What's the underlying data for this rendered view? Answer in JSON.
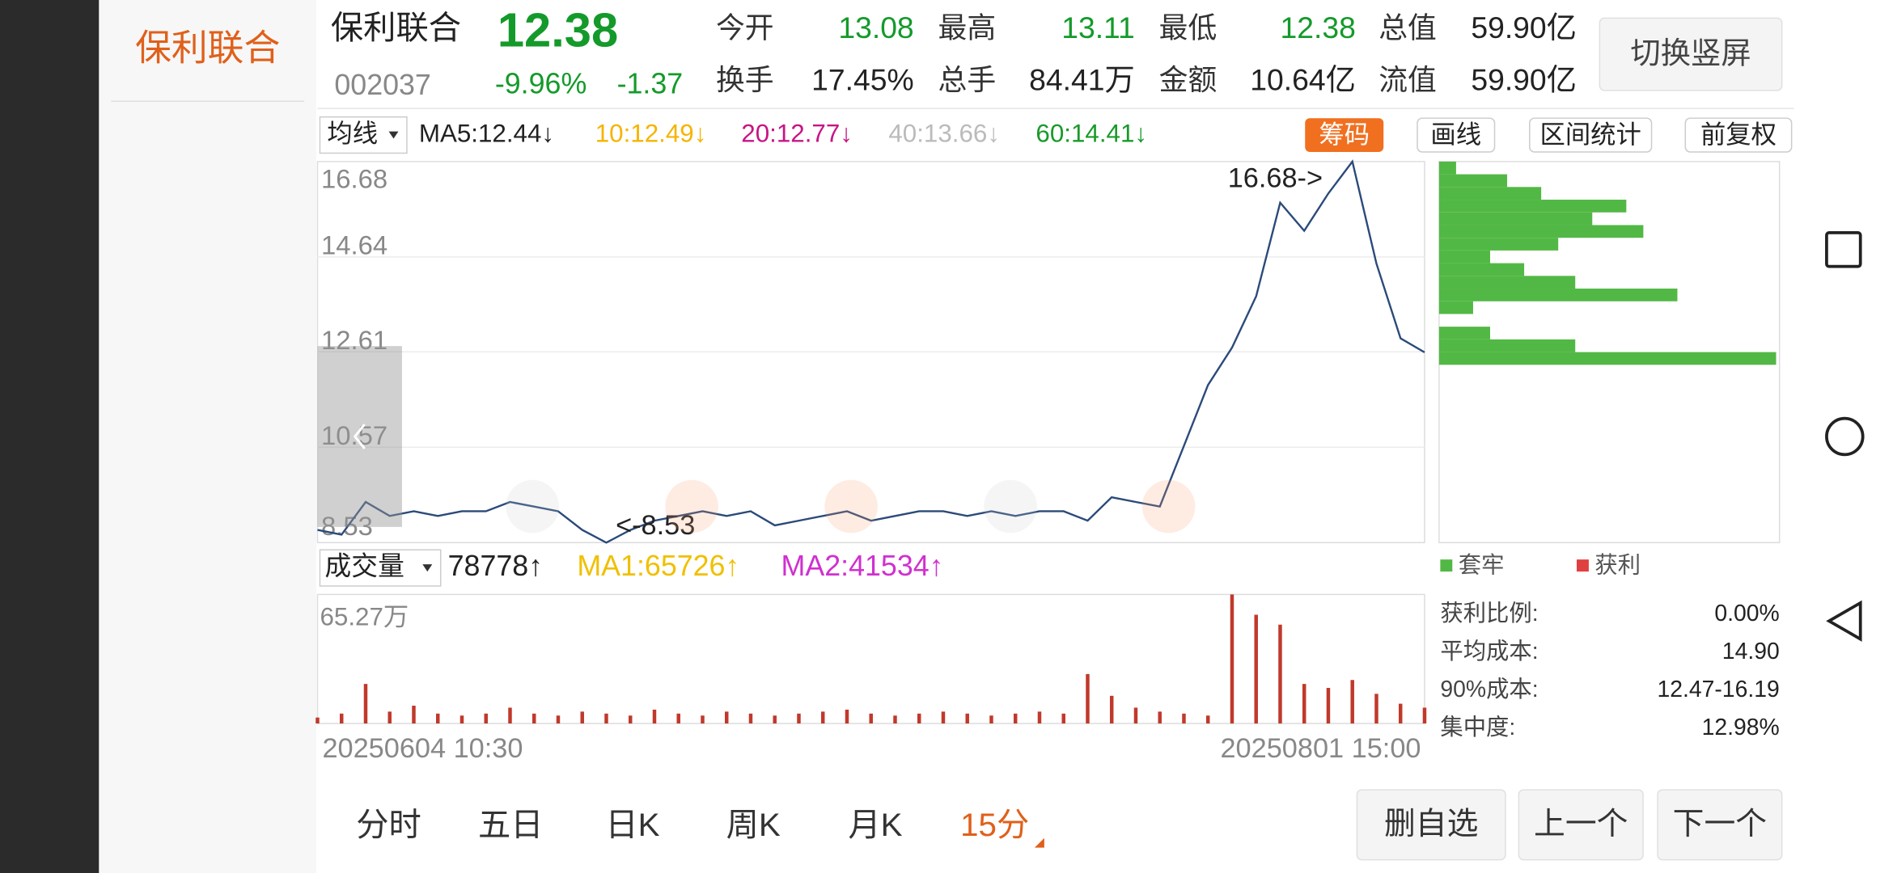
{
  "header": {
    "tab_name": "保利联合",
    "name": "保利联合",
    "price": "12.38",
    "code": "002037",
    "change_pct": "-9.96%",
    "change": "-1.37",
    "button": "切换竖屏"
  },
  "stats": [
    {
      "label": "今开",
      "value": "13.08"
    },
    {
      "label": "最高",
      "value": "13.11"
    },
    {
      "label": "最低",
      "value": "12.38"
    },
    {
      "label": "总值",
      "value": "59.90亿"
    },
    {
      "label": "换手",
      "value": "17.45%"
    },
    {
      "label": "总手",
      "value": "84.41万"
    },
    {
      "label": "金额",
      "value": "10.64亿"
    },
    {
      "label": "流值",
      "value": "59.90亿"
    }
  ],
  "ma_bar": {
    "selector": "均线",
    "items": [
      {
        "text": "MA5:12.44↓",
        "color": "#222222"
      },
      {
        "text": "10:12.49↓",
        "color": "#f5b400"
      },
      {
        "text": "20:12.77↓",
        "color": "#c71585"
      },
      {
        "text": "40:13.66↓",
        "color": "#bbbbbb"
      },
      {
        "text": "60:14.41↓",
        "color": "#1a9a2a"
      }
    ]
  },
  "tools": [
    "筹码",
    "画线",
    "区间统计",
    "前复权"
  ],
  "price_chart": {
    "type": "line",
    "color": "#2b4a7a",
    "ylim": [
      8.53,
      16.68
    ],
    "yticks": [
      8.53,
      10.57,
      12.61,
      14.64,
      16.68
    ],
    "grid": true,
    "values": [
      8.8,
      8.7,
      9.4,
      9.1,
      9.2,
      9.1,
      9.2,
      9.2,
      9.4,
      9.3,
      9.2,
      8.8,
      8.53,
      8.8,
      9.0,
      9.1,
      9.2,
      9.1,
      9.2,
      8.9,
      9.0,
      9.1,
      9.2,
      9.0,
      9.1,
      9.2,
      9.2,
      9.1,
      9.2,
      9.1,
      9.2,
      9.2,
      9.0,
      9.5,
      9.4,
      9.3,
      10.6,
      11.9,
      12.7,
      13.8,
      15.8,
      15.2,
      16.0,
      16.68,
      14.5,
      12.9,
      12.6
    ],
    "annotations": [
      "16.68->",
      "<-8.53"
    ]
  },
  "volume_bar": {
    "selector": "成交量",
    "items": [
      {
        "text": "78778↑",
        "color": "#222222"
      },
      {
        "text": "MA1:65726↑",
        "color": "#f0c000"
      },
      {
        "text": "MA2:41534↑",
        "color": "#d030d0"
      }
    ]
  },
  "volume_chart": {
    "type": "bar",
    "color": "#c0392b",
    "top_label": "65.27万",
    "ylim": [
      0,
      65.27
    ],
    "values": [
      3,
      5,
      20,
      6,
      9,
      5,
      4,
      5,
      8,
      5,
      4,
      6,
      5,
      4,
      7,
      5,
      4,
      6,
      5,
      4,
      5,
      6,
      7,
      5,
      4,
      5,
      6,
      5,
      4,
      5,
      6,
      5,
      25,
      14,
      8,
      6,
      5,
      4,
      65.27,
      55,
      50,
      20,
      18,
      22,
      15,
      10,
      8
    ],
    "x_labels": [
      "20250604 10:30",
      "20250801 15:00"
    ]
  },
  "chips": {
    "color": "#52b845",
    "values": [
      5,
      20,
      30,
      55,
      45,
      60,
      35,
      15,
      25,
      40,
      70,
      10,
      0,
      15,
      40,
      99,
      0,
      0,
      0,
      0,
      0,
      0,
      0,
      0,
      0,
      0,
      0,
      0,
      0,
      0
    ],
    "legend": [
      {
        "name": "套牢",
        "color": "#52b845"
      },
      {
        "name": "获利",
        "color": "#e04040"
      }
    ],
    "stats": [
      {
        "label": "获利比例:",
        "value": "0.00%"
      },
      {
        "label": "平均成本:",
        "value": "14.90"
      },
      {
        "label": "90%成本:",
        "value": "12.47-16.19"
      },
      {
        "label": "集中度:",
        "value": "12.98%"
      }
    ]
  },
  "tabs": [
    "分时",
    "五日",
    "日K",
    "周K",
    "月K",
    "15分"
  ],
  "buttons": [
    "删自选",
    "上一个",
    "下一个"
  ]
}
